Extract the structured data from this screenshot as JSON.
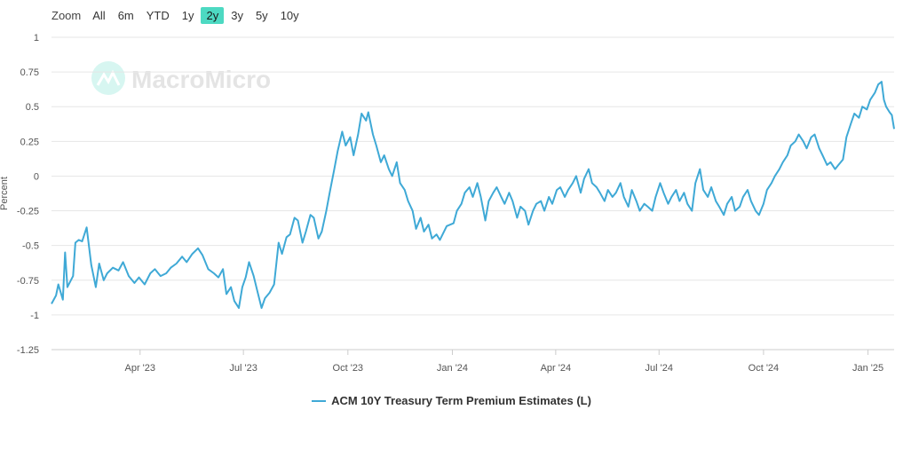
{
  "zoom": {
    "label": "Zoom",
    "buttons": [
      "All",
      "6m",
      "YTD",
      "1y",
      "2y",
      "3y",
      "5y",
      "10y"
    ],
    "active": "2y"
  },
  "watermark": "MacroMicro",
  "chart_data": {
    "type": "line",
    "title": "",
    "ylabel": "Percent",
    "ylim": [
      -1.25,
      1
    ],
    "yticks": [
      1,
      0.75,
      0.5,
      0.25,
      0,
      -0.25,
      -0.5,
      -0.75,
      -1,
      -1.25
    ],
    "ytick_labels": [
      "1",
      "0.75",
      "0.5",
      "0.25",
      "0",
      "-0.25",
      "-0.5",
      "-0.75",
      "-1",
      "-1.25"
    ],
    "xlim": [
      "2023-01-13",
      "2025-01-24"
    ],
    "xticks": [
      {
        "date": "2023-04-01",
        "label": "Apr '23"
      },
      {
        "date": "2023-07-01",
        "label": "Jul '23"
      },
      {
        "date": "2023-10-01",
        "label": "Oct '23"
      },
      {
        "date": "2024-01-01",
        "label": "Jan '24"
      },
      {
        "date": "2024-04-01",
        "label": "Apr '24"
      },
      {
        "date": "2024-07-01",
        "label": "Jul '24"
      },
      {
        "date": "2024-10-01",
        "label": "Oct '24"
      },
      {
        "date": "2025-01-01",
        "label": "Jan '25"
      }
    ],
    "grid": true,
    "legend_position": "bottom-center",
    "series": [
      {
        "name": "ACM 10Y Treasury Term Premium Estimates (L)",
        "color": "#3fa9d6",
        "points": [
          [
            "2023-01-13",
            -0.92
          ],
          [
            "2023-01-17",
            -0.86
          ],
          [
            "2023-01-19",
            -0.78
          ],
          [
            "2023-01-23",
            -0.89
          ],
          [
            "2023-01-25",
            -0.55
          ],
          [
            "2023-01-27",
            -0.8
          ],
          [
            "2023-02-01",
            -0.72
          ],
          [
            "2023-02-03",
            -0.48
          ],
          [
            "2023-02-06",
            -0.46
          ],
          [
            "2023-02-09",
            -0.47
          ],
          [
            "2023-02-13",
            -0.37
          ],
          [
            "2023-02-17",
            -0.64
          ],
          [
            "2023-02-21",
            -0.8
          ],
          [
            "2023-02-24",
            -0.63
          ],
          [
            "2023-02-28",
            -0.75
          ],
          [
            "2023-03-03",
            -0.7
          ],
          [
            "2023-03-08",
            -0.66
          ],
          [
            "2023-03-13",
            -0.68
          ],
          [
            "2023-03-17",
            -0.62
          ],
          [
            "2023-03-22",
            -0.72
          ],
          [
            "2023-03-27",
            -0.77
          ],
          [
            "2023-03-31",
            -0.73
          ],
          [
            "2023-04-05",
            -0.78
          ],
          [
            "2023-04-10",
            -0.7
          ],
          [
            "2023-04-14",
            -0.67
          ],
          [
            "2023-04-19",
            -0.72
          ],
          [
            "2023-04-24",
            -0.7
          ],
          [
            "2023-04-28",
            -0.66
          ],
          [
            "2023-05-03",
            -0.63
          ],
          [
            "2023-05-08",
            -0.58
          ],
          [
            "2023-05-12",
            -0.62
          ],
          [
            "2023-05-17",
            -0.56
          ],
          [
            "2023-05-22",
            -0.52
          ],
          [
            "2023-05-26",
            -0.57
          ],
          [
            "2023-05-31",
            -0.67
          ],
          [
            "2023-06-05",
            -0.7
          ],
          [
            "2023-06-09",
            -0.73
          ],
          [
            "2023-06-13",
            -0.67
          ],
          [
            "2023-06-16",
            -0.85
          ],
          [
            "2023-06-20",
            -0.8
          ],
          [
            "2023-06-23",
            -0.9
          ],
          [
            "2023-06-27",
            -0.95
          ],
          [
            "2023-06-30",
            -0.8
          ],
          [
            "2023-07-03",
            -0.73
          ],
          [
            "2023-07-06",
            -0.62
          ],
          [
            "2023-07-10",
            -0.72
          ],
          [
            "2023-07-13",
            -0.82
          ],
          [
            "2023-07-17",
            -0.95
          ],
          [
            "2023-07-20",
            -0.88
          ],
          [
            "2023-07-24",
            -0.84
          ],
          [
            "2023-07-28",
            -0.78
          ],
          [
            "2023-08-01",
            -0.48
          ],
          [
            "2023-08-04",
            -0.56
          ],
          [
            "2023-08-08",
            -0.44
          ],
          [
            "2023-08-11",
            -0.42
          ],
          [
            "2023-08-15",
            -0.3
          ],
          [
            "2023-08-18",
            -0.32
          ],
          [
            "2023-08-22",
            -0.48
          ],
          [
            "2023-08-25",
            -0.4
          ],
          [
            "2023-08-29",
            -0.28
          ],
          [
            "2023-09-01",
            -0.3
          ],
          [
            "2023-09-05",
            -0.45
          ],
          [
            "2023-09-08",
            -0.4
          ],
          [
            "2023-09-12",
            -0.25
          ],
          [
            "2023-09-15",
            -0.12
          ],
          [
            "2023-09-19",
            0.05
          ],
          [
            "2023-09-22",
            0.18
          ],
          [
            "2023-09-26",
            0.32
          ],
          [
            "2023-09-29",
            0.22
          ],
          [
            "2023-10-03",
            0.28
          ],
          [
            "2023-10-06",
            0.15
          ],
          [
            "2023-10-10",
            0.3
          ],
          [
            "2023-10-13",
            0.45
          ],
          [
            "2023-10-17",
            0.4
          ],
          [
            "2023-10-19",
            0.46
          ],
          [
            "2023-10-23",
            0.3
          ],
          [
            "2023-10-26",
            0.22
          ],
          [
            "2023-10-30",
            0.1
          ],
          [
            "2023-11-02",
            0.15
          ],
          [
            "2023-11-06",
            0.05
          ],
          [
            "2023-11-09",
            0.0
          ],
          [
            "2023-11-13",
            0.1
          ],
          [
            "2023-11-16",
            -0.05
          ],
          [
            "2023-11-20",
            -0.1
          ],
          [
            "2023-11-23",
            -0.18
          ],
          [
            "2023-11-27",
            -0.25
          ],
          [
            "2023-11-30",
            -0.38
          ],
          [
            "2023-12-04",
            -0.3
          ],
          [
            "2023-12-07",
            -0.4
          ],
          [
            "2023-12-11",
            -0.35
          ],
          [
            "2023-12-14",
            -0.45
          ],
          [
            "2023-12-18",
            -0.42
          ],
          [
            "2023-12-21",
            -0.46
          ],
          [
            "2023-12-27",
            -0.36
          ],
          [
            "2024-01-02",
            -0.34
          ],
          [
            "2024-01-05",
            -0.25
          ],
          [
            "2024-01-09",
            -0.2
          ],
          [
            "2024-01-12",
            -0.12
          ],
          [
            "2024-01-16",
            -0.08
          ],
          [
            "2024-01-19",
            -0.15
          ],
          [
            "2024-01-23",
            -0.05
          ],
          [
            "2024-01-26",
            -0.15
          ],
          [
            "2024-01-30",
            -0.32
          ],
          [
            "2024-02-02",
            -0.18
          ],
          [
            "2024-02-06",
            -0.12
          ],
          [
            "2024-02-09",
            -0.08
          ],
          [
            "2024-02-13",
            -0.15
          ],
          [
            "2024-02-16",
            -0.2
          ],
          [
            "2024-02-20",
            -0.12
          ],
          [
            "2024-02-23",
            -0.18
          ],
          [
            "2024-02-27",
            -0.3
          ],
          [
            "2024-03-01",
            -0.22
          ],
          [
            "2024-03-05",
            -0.25
          ],
          [
            "2024-03-08",
            -0.35
          ],
          [
            "2024-03-12",
            -0.25
          ],
          [
            "2024-03-15",
            -0.2
          ],
          [
            "2024-03-19",
            -0.18
          ],
          [
            "2024-03-22",
            -0.25
          ],
          [
            "2024-03-26",
            -0.15
          ],
          [
            "2024-03-29",
            -0.2
          ],
          [
            "2024-04-02",
            -0.1
          ],
          [
            "2024-04-05",
            -0.08
          ],
          [
            "2024-04-09",
            -0.15
          ],
          [
            "2024-04-12",
            -0.1
          ],
          [
            "2024-04-16",
            -0.05
          ],
          [
            "2024-04-19",
            0.0
          ],
          [
            "2024-04-23",
            -0.12
          ],
          [
            "2024-04-26",
            -0.02
          ],
          [
            "2024-04-30",
            0.05
          ],
          [
            "2024-05-03",
            -0.05
          ],
          [
            "2024-05-07",
            -0.08
          ],
          [
            "2024-05-10",
            -0.12
          ],
          [
            "2024-05-14",
            -0.18
          ],
          [
            "2024-05-17",
            -0.1
          ],
          [
            "2024-05-21",
            -0.15
          ],
          [
            "2024-05-24",
            -0.12
          ],
          [
            "2024-05-28",
            -0.05
          ],
          [
            "2024-05-31",
            -0.15
          ],
          [
            "2024-06-04",
            -0.22
          ],
          [
            "2024-06-07",
            -0.1
          ],
          [
            "2024-06-11",
            -0.18
          ],
          [
            "2024-06-14",
            -0.25
          ],
          [
            "2024-06-18",
            -0.2
          ],
          [
            "2024-06-21",
            -0.22
          ],
          [
            "2024-06-25",
            -0.25
          ],
          [
            "2024-06-28",
            -0.15
          ],
          [
            "2024-07-02",
            -0.05
          ],
          [
            "2024-07-05",
            -0.12
          ],
          [
            "2024-07-09",
            -0.2
          ],
          [
            "2024-07-12",
            -0.15
          ],
          [
            "2024-07-16",
            -0.1
          ],
          [
            "2024-07-19",
            -0.18
          ],
          [
            "2024-07-23",
            -0.12
          ],
          [
            "2024-07-26",
            -0.2
          ],
          [
            "2024-07-30",
            -0.25
          ],
          [
            "2024-08-02",
            -0.05
          ],
          [
            "2024-08-06",
            0.05
          ],
          [
            "2024-08-09",
            -0.1
          ],
          [
            "2024-08-13",
            -0.15
          ],
          [
            "2024-08-16",
            -0.08
          ],
          [
            "2024-08-20",
            -0.18
          ],
          [
            "2024-08-23",
            -0.22
          ],
          [
            "2024-08-27",
            -0.28
          ],
          [
            "2024-08-30",
            -0.2
          ],
          [
            "2024-09-03",
            -0.15
          ],
          [
            "2024-09-06",
            -0.25
          ],
          [
            "2024-09-10",
            -0.22
          ],
          [
            "2024-09-13",
            -0.15
          ],
          [
            "2024-09-17",
            -0.1
          ],
          [
            "2024-09-20",
            -0.18
          ],
          [
            "2024-09-24",
            -0.25
          ],
          [
            "2024-09-27",
            -0.28
          ],
          [
            "2024-10-01",
            -0.2
          ],
          [
            "2024-10-04",
            -0.1
          ],
          [
            "2024-10-08",
            -0.05
          ],
          [
            "2024-10-11",
            0.0
          ],
          [
            "2024-10-15",
            0.05
          ],
          [
            "2024-10-18",
            0.1
          ],
          [
            "2024-10-22",
            0.15
          ],
          [
            "2024-10-25",
            0.22
          ],
          [
            "2024-10-29",
            0.25
          ],
          [
            "2024-11-01",
            0.3
          ],
          [
            "2024-11-05",
            0.25
          ],
          [
            "2024-11-08",
            0.2
          ],
          [
            "2024-11-12",
            0.28
          ],
          [
            "2024-11-15",
            0.3
          ],
          [
            "2024-11-19",
            0.2
          ],
          [
            "2024-11-22",
            0.15
          ],
          [
            "2024-11-26",
            0.08
          ],
          [
            "2024-11-29",
            0.1
          ],
          [
            "2024-12-03",
            0.05
          ],
          [
            "2024-12-06",
            0.08
          ],
          [
            "2024-12-10",
            0.12
          ],
          [
            "2024-12-13",
            0.28
          ],
          [
            "2024-12-17",
            0.38
          ],
          [
            "2024-12-20",
            0.45
          ],
          [
            "2024-12-24",
            0.42
          ],
          [
            "2024-12-27",
            0.5
          ],
          [
            "2024-12-31",
            0.48
          ],
          [
            "2025-01-03",
            0.55
          ],
          [
            "2025-01-07",
            0.6
          ],
          [
            "2025-01-10",
            0.66
          ],
          [
            "2025-01-13",
            0.68
          ],
          [
            "2025-01-15",
            0.55
          ],
          [
            "2025-01-17",
            0.5
          ],
          [
            "2025-01-20",
            0.46
          ],
          [
            "2025-01-22",
            0.44
          ],
          [
            "2025-01-24",
            0.34
          ]
        ]
      }
    ]
  }
}
